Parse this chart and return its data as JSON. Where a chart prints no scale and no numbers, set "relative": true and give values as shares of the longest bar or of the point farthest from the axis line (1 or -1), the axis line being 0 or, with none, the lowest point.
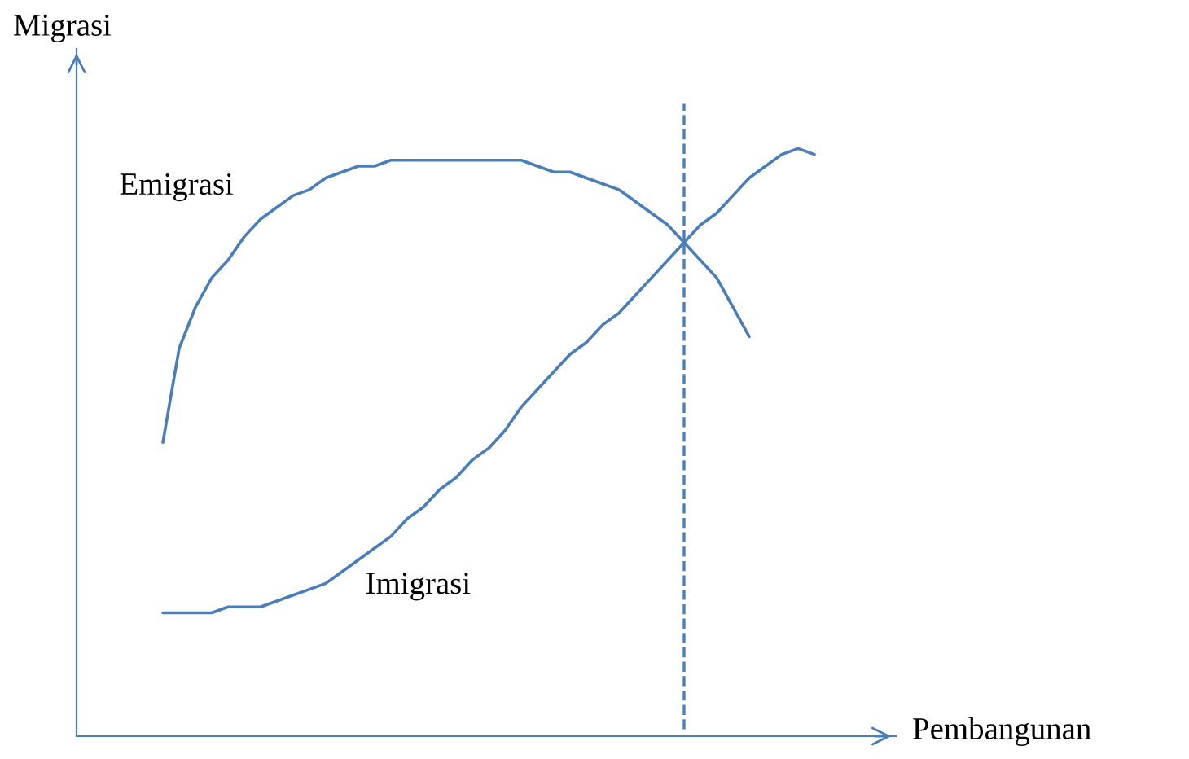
{
  "chart_data": {
    "type": "line",
    "relative": true,
    "xlabel": "Pembangunan",
    "ylabel": "Migrasi",
    "categories": [
      null,
      null,
      null,
      null,
      null,
      null,
      null,
      null,
      null,
      null,
      null,
      null,
      null,
      null,
      null,
      null,
      null,
      null,
      null,
      null,
      null,
      null,
      null,
      null,
      null,
      null,
      null,
      null,
      null,
      null,
      null,
      null,
      null,
      null,
      null,
      null,
      null,
      null,
      null,
      null,
      null
    ],
    "series": [
      {
        "name": "Emigrasi",
        "color": "#4a7ebb",
        "values": [
          0.5,
          0.66,
          0.73,
          0.78,
          0.81,
          0.85,
          0.88,
          0.9,
          0.92,
          0.93,
          0.95,
          0.96,
          0.97,
          0.97,
          0.98,
          0.98,
          0.98,
          0.98,
          0.98,
          0.98,
          0.98,
          0.98,
          0.98,
          0.97,
          0.96,
          0.96,
          0.95,
          0.94,
          0.93,
          0.91,
          0.89,
          0.87,
          0.84,
          0.81,
          0.78,
          0.73,
          0.68,
          null,
          null,
          null,
          null
        ]
      },
      {
        "name": "Imigrasi",
        "color": "#4a7ebb",
        "values": [
          0.21,
          0.21,
          0.21,
          0.21,
          0.22,
          0.22,
          0.22,
          0.23,
          0.24,
          0.25,
          0.26,
          0.28,
          0.3,
          0.32,
          0.34,
          0.37,
          0.39,
          0.42,
          0.44,
          0.47,
          0.49,
          0.52,
          0.56,
          0.59,
          0.62,
          0.65,
          0.67,
          0.7,
          0.72,
          0.75,
          0.78,
          0.81,
          0.84,
          0.87,
          0.89,
          0.92,
          0.95,
          0.97,
          0.99,
          1.0,
          0.99
        ]
      }
    ],
    "legend": false,
    "marker": "none",
    "line_style": "solid"
  }
}
